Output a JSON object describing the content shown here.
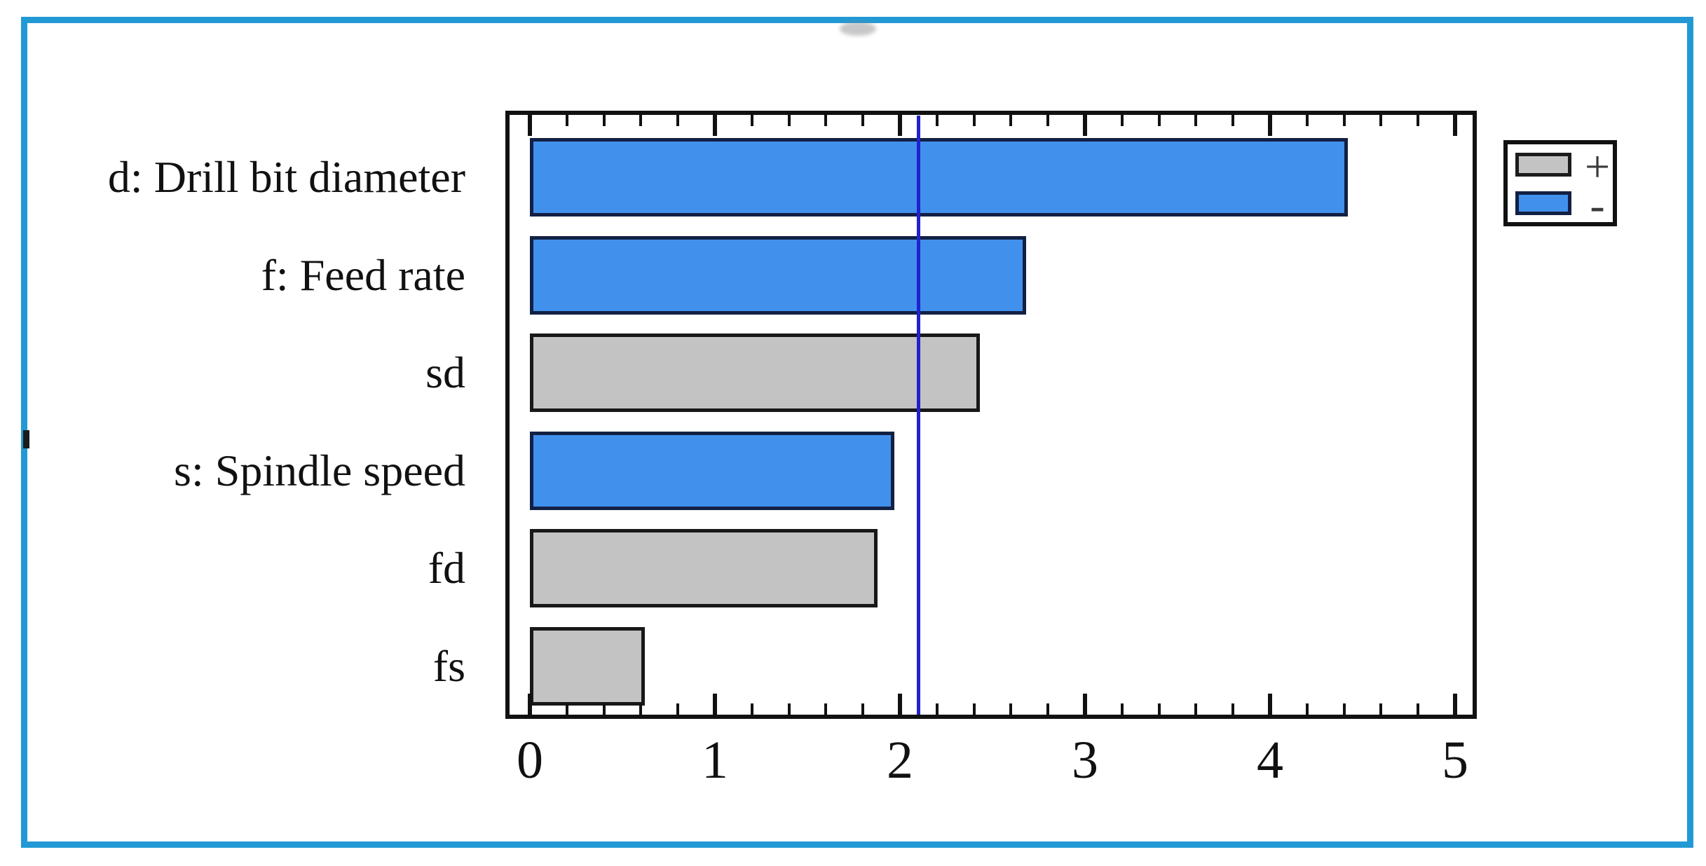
{
  "chart_data": {
    "type": "bar",
    "orientation": "horizontal",
    "title": "",
    "xlabel": "",
    "ylabel": "",
    "categories": [
      "d: Drill bit diameter",
      "f: Feed rate",
      "sd",
      "s: Spindle speed",
      "fd",
      "fs"
    ],
    "values": [
      4.42,
      2.68,
      2.43,
      1.97,
      1.88,
      0.62
    ],
    "signs": [
      "-",
      "-",
      "+",
      "-",
      "+",
      "+"
    ],
    "bar_colors": [
      "#4191ec",
      "#4191ec",
      "#c3c3c3",
      "#4191ec",
      "#c3c3c3",
      "#c3c3c3"
    ],
    "xlim": [
      0,
      5.12
    ],
    "x_ticks": [
      "0",
      "1",
      "2",
      "3",
      "4",
      "5"
    ],
    "x_minor_tick_step": 0.2,
    "grid": false,
    "reference_line": {
      "value": 2.1,
      "color": "#2121cd"
    },
    "legend": {
      "position": "top-right",
      "entries": [
        {
          "label": "+",
          "color": "#c3c3c3"
        },
        {
          "label": "-",
          "color": "#4191ec"
        }
      ]
    }
  },
  "colors": {
    "outer_frame": "#2299d4",
    "bar_blue": "#4191ec",
    "bar_gray": "#c3c3c3",
    "axis": "#111111",
    "reference_line": "#2121cd"
  }
}
